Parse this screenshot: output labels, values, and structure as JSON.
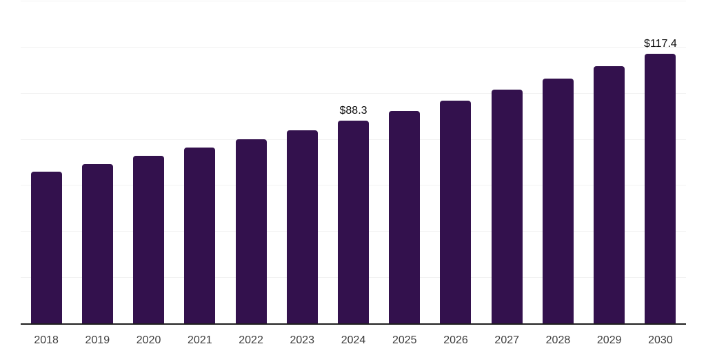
{
  "chart_data": {
    "type": "bar",
    "title": "",
    "xlabel": "",
    "ylabel": "",
    "categories": [
      "2018",
      "2019",
      "2020",
      "2021",
      "2022",
      "2023",
      "2024",
      "2025",
      "2026",
      "2027",
      "2028",
      "2029",
      "2030"
    ],
    "values": [
      66.1,
      69.4,
      72.9,
      76.6,
      80.3,
      84.1,
      88.3,
      92.5,
      96.9,
      101.7,
      106.6,
      111.9,
      117.4
    ],
    "data_labels": {
      "2024": "$88.3",
      "2030": "$117.4"
    },
    "ylim": [
      0,
      140
    ],
    "grid_step": 20,
    "grid": "on",
    "y_tick_labels_shown": "none",
    "legend": "none",
    "colors": {
      "bar": "#33114d",
      "gridline": "#f2f2f2",
      "axis_line": "#1f1f1f",
      "tick_label": "#3d3d3d",
      "data_label": "#0d0d0d",
      "background": "#ffffff"
    }
  }
}
